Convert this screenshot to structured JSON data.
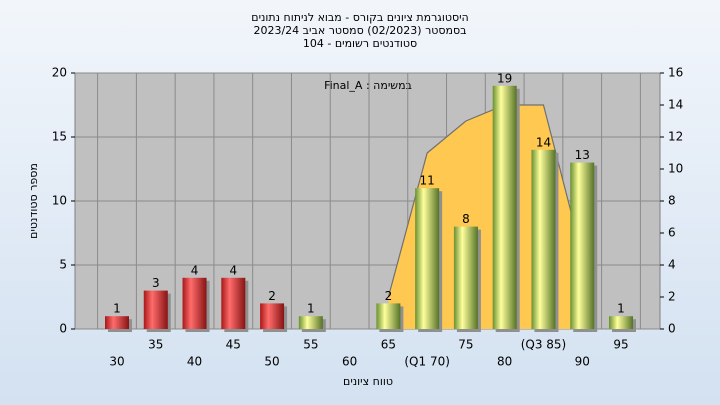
{
  "chart_data": {
    "type": "bar",
    "title": [
      "היסטוגרמת ציונים בקורס - מבוא לניתוח נתונים",
      "בסמסטר (02/2023)  סמסטר אביב 2023/24",
      "סטודנטים רשומים - 104"
    ],
    "annotation": "במשימה : Final_A",
    "x_label": "טווח ציונים",
    "y_label": "מספר סטודנטים",
    "categories": [
      "30",
      "35",
      "40",
      "45",
      "50",
      "55",
      "60",
      "65",
      "(Q1 70)",
      "75",
      "80",
      "(Q3 85)",
      "90",
      "95"
    ],
    "series": [
      {
        "type": "bar",
        "values": [
          1,
          3,
          4,
          4,
          2,
          1,
          null,
          2,
          11,
          8,
          19,
          14,
          13,
          1
        ],
        "colors": [
          "#e02020",
          "#e02020",
          "#e02020",
          "#e02020",
          "#e02020",
          "#8cc040",
          "#8cc040",
          "#8cc040",
          "#8cc040",
          "#8cc040",
          "#8cc040",
          "#8cc040",
          "#8cc040",
          "#8cc040"
        ]
      },
      {
        "type": "area",
        "axis": "y2",
        "color": "#ffc850",
        "line_color": "#707070",
        "values": [
          null,
          null,
          null,
          null,
          null,
          null,
          null,
          2,
          11,
          13,
          14,
          14,
          4.6,
          null
        ]
      }
    ],
    "ylim": [
      0,
      20
    ],
    "yticks": [
      0,
      5,
      10,
      15,
      20
    ],
    "y2lim": [
      0,
      16
    ],
    "y2ticks": [
      0,
      2,
      4,
      6,
      8,
      10,
      12,
      14,
      16
    ],
    "grid": true
  }
}
